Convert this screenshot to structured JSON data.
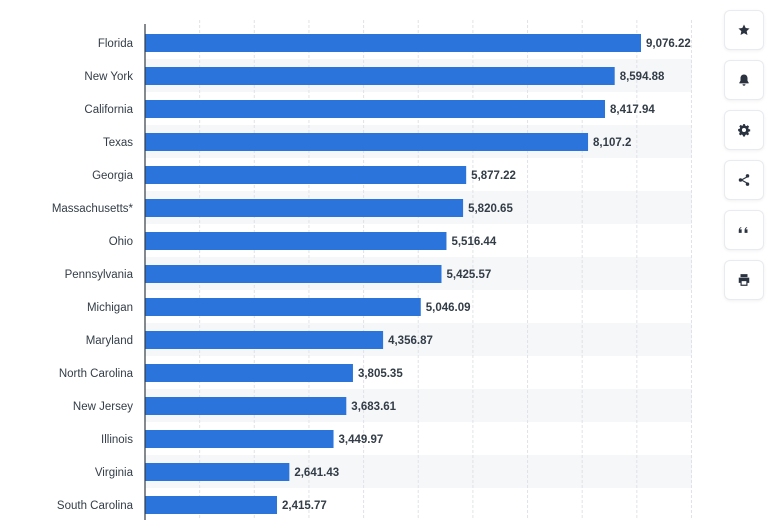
{
  "chart_data": {
    "type": "bar",
    "orientation": "horizontal",
    "categories": [
      "Florida",
      "New York",
      "California",
      "Texas",
      "Georgia",
      "Massachusetts*",
      "Ohio",
      "Pennsylvania",
      "Michigan",
      "Maryland",
      "North Carolina",
      "New Jersey",
      "Illinois",
      "Virginia",
      "South Carolina"
    ],
    "values": [
      9076.22,
      8594.88,
      8417.94,
      8107.2,
      5877.22,
      5820.65,
      5516.44,
      5425.57,
      5046.09,
      4356.87,
      3805.35,
      3683.61,
      3449.97,
      2641.43,
      2415.77
    ],
    "value_labels": [
      "9,076.22",
      "8,594.88",
      "8,417.94",
      "8,107.2",
      "5,877.22",
      "5,820.65",
      "5,516.44",
      "5,425.57",
      "5,046.09",
      "4,356.87",
      "3,805.35",
      "3,683.61",
      "3,449.97",
      "2,641.43",
      "2,415.77"
    ],
    "title": "",
    "xlabel": "",
    "ylabel": "",
    "xlim": [
      0,
      10000
    ],
    "grid": true,
    "bar_color": "#2a74db"
  },
  "toolbar": {
    "buttons": [
      {
        "icon": "star-icon"
      },
      {
        "icon": "bell-icon"
      },
      {
        "icon": "gear-icon"
      },
      {
        "icon": "share-icon"
      },
      {
        "icon": "quote-icon"
      },
      {
        "icon": "print-icon"
      }
    ]
  }
}
